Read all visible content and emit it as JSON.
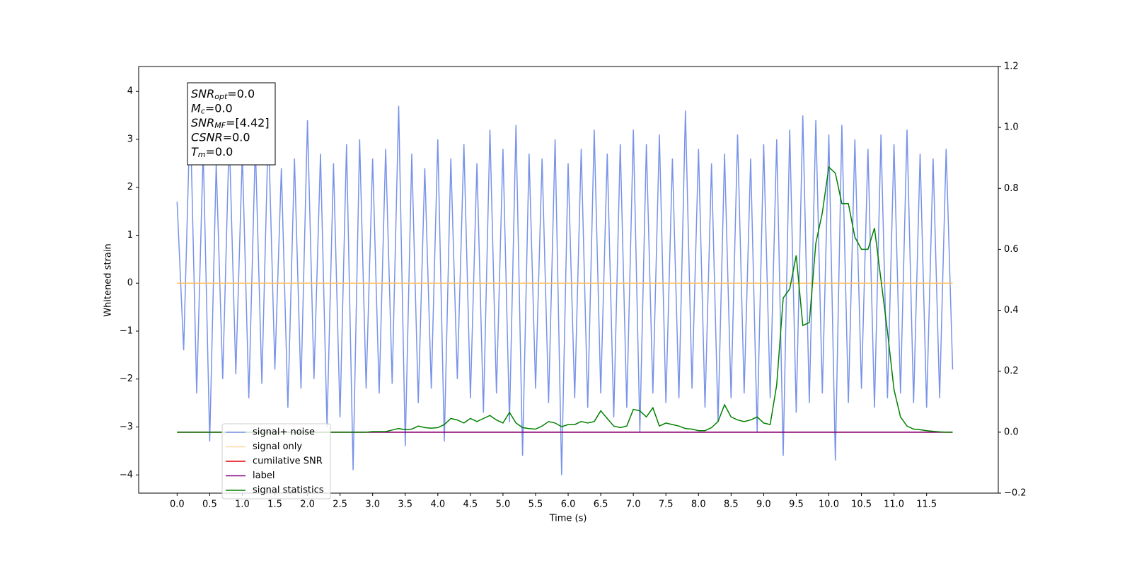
{
  "chart_data": {
    "type": "line",
    "xlabel": "Time (s)",
    "ylabel": "Whitened strain",
    "xlim": [
      -0.59,
      12.6
    ],
    "ylim": [
      -4.38,
      4.52
    ],
    "y2lim": [
      -0.2,
      1.2
    ],
    "xticks": [
      {
        "value": 0,
        "label": "0.0"
      },
      {
        "value": 0.5,
        "label": "0.5"
      },
      {
        "value": 1,
        "label": "1.0"
      },
      {
        "value": 1.5,
        "label": "1.5"
      },
      {
        "value": 2,
        "label": "2.0"
      },
      {
        "value": 2.5,
        "label": "2.5"
      },
      {
        "value": 3,
        "label": "3.0"
      },
      {
        "value": 3.5,
        "label": "3.5"
      },
      {
        "value": 4,
        "label": "4.0"
      },
      {
        "value": 4.5,
        "label": "4.5"
      },
      {
        "value": 5,
        "label": "5.0"
      },
      {
        "value": 5.5,
        "label": "5.5"
      },
      {
        "value": 6,
        "label": "6.0"
      },
      {
        "value": 6.5,
        "label": "6.5"
      },
      {
        "value": 7,
        "label": "7.0"
      },
      {
        "value": 7.5,
        "label": "7.5"
      },
      {
        "value": 8,
        "label": "8.0"
      },
      {
        "value": 8.5,
        "label": "8.5"
      },
      {
        "value": 9,
        "label": "9.0"
      },
      {
        "value": 9.5,
        "label": "9.5"
      },
      {
        "value": 10,
        "label": "10.0"
      },
      {
        "value": 10.5,
        "label": "10.5"
      },
      {
        "value": 11,
        "label": "11.0"
      },
      {
        "value": 11.5,
        "label": "11.5"
      }
    ],
    "yticks": [
      {
        "value": -4,
        "label": "−4"
      },
      {
        "value": -3,
        "label": "−3"
      },
      {
        "value": -2,
        "label": "−2"
      },
      {
        "value": -1,
        "label": "−1"
      },
      0,
      1,
      2,
      3,
      4
    ],
    "y2ticks": [
      {
        "value": -0.2,
        "label": "−0.2"
      },
      {
        "value": 0,
        "label": "0.0"
      },
      {
        "value": 0.2,
        "label": "0.2"
      },
      {
        "value": 0.4,
        "label": "0.4"
      },
      {
        "value": 0.6,
        "label": "0.6"
      },
      {
        "value": 0.8,
        "label": "0.8"
      },
      {
        "value": 1.0,
        "label": "1.0"
      },
      {
        "value": 1.2,
        "label": "1.2"
      }
    ],
    "legend": "lower left",
    "x": [
      0,
      0.1,
      0.2,
      0.3,
      0.4,
      0.5,
      0.6,
      0.7,
      0.8,
      0.9,
      1,
      1.1,
      1.2,
      1.3,
      1.4,
      1.5,
      1.6,
      1.7,
      1.8,
      1.9,
      2,
      2.1,
      2.2,
      2.3,
      2.4,
      2.5,
      2.6,
      2.7,
      2.8,
      2.9,
      3,
      3.1,
      3.2,
      3.3,
      3.4,
      3.5,
      3.6,
      3.7,
      3.8,
      3.9,
      4,
      4.1,
      4.2,
      4.3,
      4.4,
      4.5,
      4.6,
      4.7,
      4.8,
      4.9,
      5,
      5.1,
      5.2,
      5.3,
      5.4,
      5.5,
      5.6,
      5.7,
      5.8,
      5.9,
      6,
      6.1,
      6.2,
      6.3,
      6.4,
      6.5,
      6.6,
      6.7,
      6.8,
      6.9,
      7,
      7.1,
      7.2,
      7.3,
      7.4,
      7.5,
      7.6,
      7.7,
      7.8,
      7.9,
      8,
      8.1,
      8.2,
      8.3,
      8.4,
      8.5,
      8.6,
      8.7,
      8.8,
      8.9,
      9,
      9.1,
      9.2,
      9.3,
      9.4,
      9.5,
      9.6,
      9.7,
      9.8,
      9.9,
      10,
      10.1,
      10.2,
      10.3,
      10.4,
      10.5,
      10.6,
      10.7,
      10.8,
      10.9,
      11,
      11.1,
      11.2,
      11.3,
      11.4,
      11.5,
      11.6,
      11.7,
      11.8,
      11.9
    ],
    "series": [
      {
        "name": "signal+ noise",
        "color": "#7893e8",
        "axis": "y",
        "values": [
          1.7,
          -1.4,
          3.6,
          -2.3,
          2.8,
          -3.3,
          2.5,
          -2.0,
          3.1,
          -1.9,
          2.7,
          -2.4,
          2.9,
          -2.1,
          3.3,
          -1.8,
          2.4,
          -2.6,
          2.6,
          -2.2,
          3.4,
          -2.0,
          2.7,
          -3.0,
          2.5,
          -2.8,
          2.9,
          -3.9,
          3.0,
          -2.2,
          2.6,
          -2.3,
          2.8,
          -2.1,
          3.7,
          -3.4,
          2.7,
          -2.5,
          2.4,
          -2.2,
          3.0,
          -3.3,
          2.6,
          -2.0,
          2.9,
          -2.4,
          2.5,
          -2.7,
          3.2,
          -2.3,
          2.8,
          -2.9,
          3.3,
          -3.6,
          2.7,
          -2.2,
          2.6,
          -2.5,
          3.0,
          -4.0,
          2.5,
          -2.4,
          2.8,
          -2.6,
          3.2,
          -2.3,
          2.7,
          -2.8,
          2.9,
          -2.6,
          3.2,
          -3.1,
          2.9,
          -2.3,
          3.1,
          -2.5,
          2.6,
          -2.4,
          3.6,
          -2.2,
          2.8,
          -2.6,
          2.5,
          -2.9,
          2.7,
          -2.4,
          3.1,
          -2.3,
          2.6,
          -3.1,
          2.9,
          -2.4,
          3.0,
          -3.6,
          3.2,
          -2.7,
          3.5,
          -2.5,
          3.4,
          -2.3,
          3.1,
          -3.7,
          3.3,
          -2.5,
          3.0,
          -2.2,
          2.8,
          -2.6,
          3.1,
          -2.4,
          2.9,
          -2.3,
          3.2,
          -2.5,
          2.7,
          -2.6,
          2.6,
          -2.4,
          2.8,
          -1.8
        ]
      },
      {
        "name": "signal only",
        "color": "#ffbf60",
        "axis": "y",
        "x": [
          0,
          11.9
        ],
        "values": [
          0,
          0
        ]
      },
      {
        "name": "cumilative SNR",
        "color": "#e00000",
        "axis": "y2",
        "x": [
          0,
          11.9
        ],
        "values": [
          0,
          0
        ]
      },
      {
        "name": "label",
        "color": "#800080",
        "axis": "y2",
        "x": [
          0,
          11.9
        ],
        "values": [
          0,
          0
        ]
      },
      {
        "name": "signal statistics",
        "color": "#008000",
        "axis": "y2",
        "values": [
          0,
          0,
          0,
          0,
          0,
          0,
          0,
          0,
          0,
          0,
          0,
          0,
          0,
          0,
          0,
          0,
          0,
          0,
          0,
          0,
          0,
          0,
          0,
          0,
          0,
          0,
          0,
          0,
          0,
          0,
          0.002,
          0.002,
          0.002,
          0.007,
          0.012,
          0.008,
          0.01,
          0.02,
          0.015,
          0.013,
          0.015,
          0.025,
          0.045,
          0.04,
          0.03,
          0.045,
          0.035,
          0.045,
          0.055,
          0.04,
          0.03,
          0.065,
          0.03,
          0.015,
          0.012,
          0.01,
          0.02,
          0.035,
          0.03,
          0.018,
          0.025,
          0.025,
          0.035,
          0.03,
          0.035,
          0.07,
          0.045,
          0.02,
          0.015,
          0.02,
          0.075,
          0.07,
          0.05,
          0.08,
          0.02,
          0.03,
          0.025,
          0.02,
          0.012,
          0.01,
          0.005,
          0.005,
          0.015,
          0.035,
          0.09,
          0.05,
          0.04,
          0.035,
          0.04,
          0.05,
          0.03,
          0.025,
          0.155,
          0.44,
          0.47,
          0.58,
          0.35,
          0.36,
          0.62,
          0.72,
          0.87,
          0.85,
          0.75,
          0.75,
          0.64,
          0.6,
          0.6,
          0.67,
          0.5,
          0.33,
          0.14,
          0.05,
          0.02,
          0.01,
          0.008,
          0.005,
          0.003,
          0.001,
          0,
          0
        ]
      }
    ],
    "annotation": [
      {
        "label": "SNR",
        "sub": "opt",
        "text": "=0.0"
      },
      {
        "label": "M",
        "sub": "c",
        "text": "=0.0"
      },
      {
        "label": "SNR",
        "sub": "MF",
        "text": "=[4.42]"
      },
      {
        "label": "CSNR",
        "text": "=0.0"
      },
      {
        "label": "T",
        "sub": "m",
        "text": "=0.0"
      }
    ]
  }
}
